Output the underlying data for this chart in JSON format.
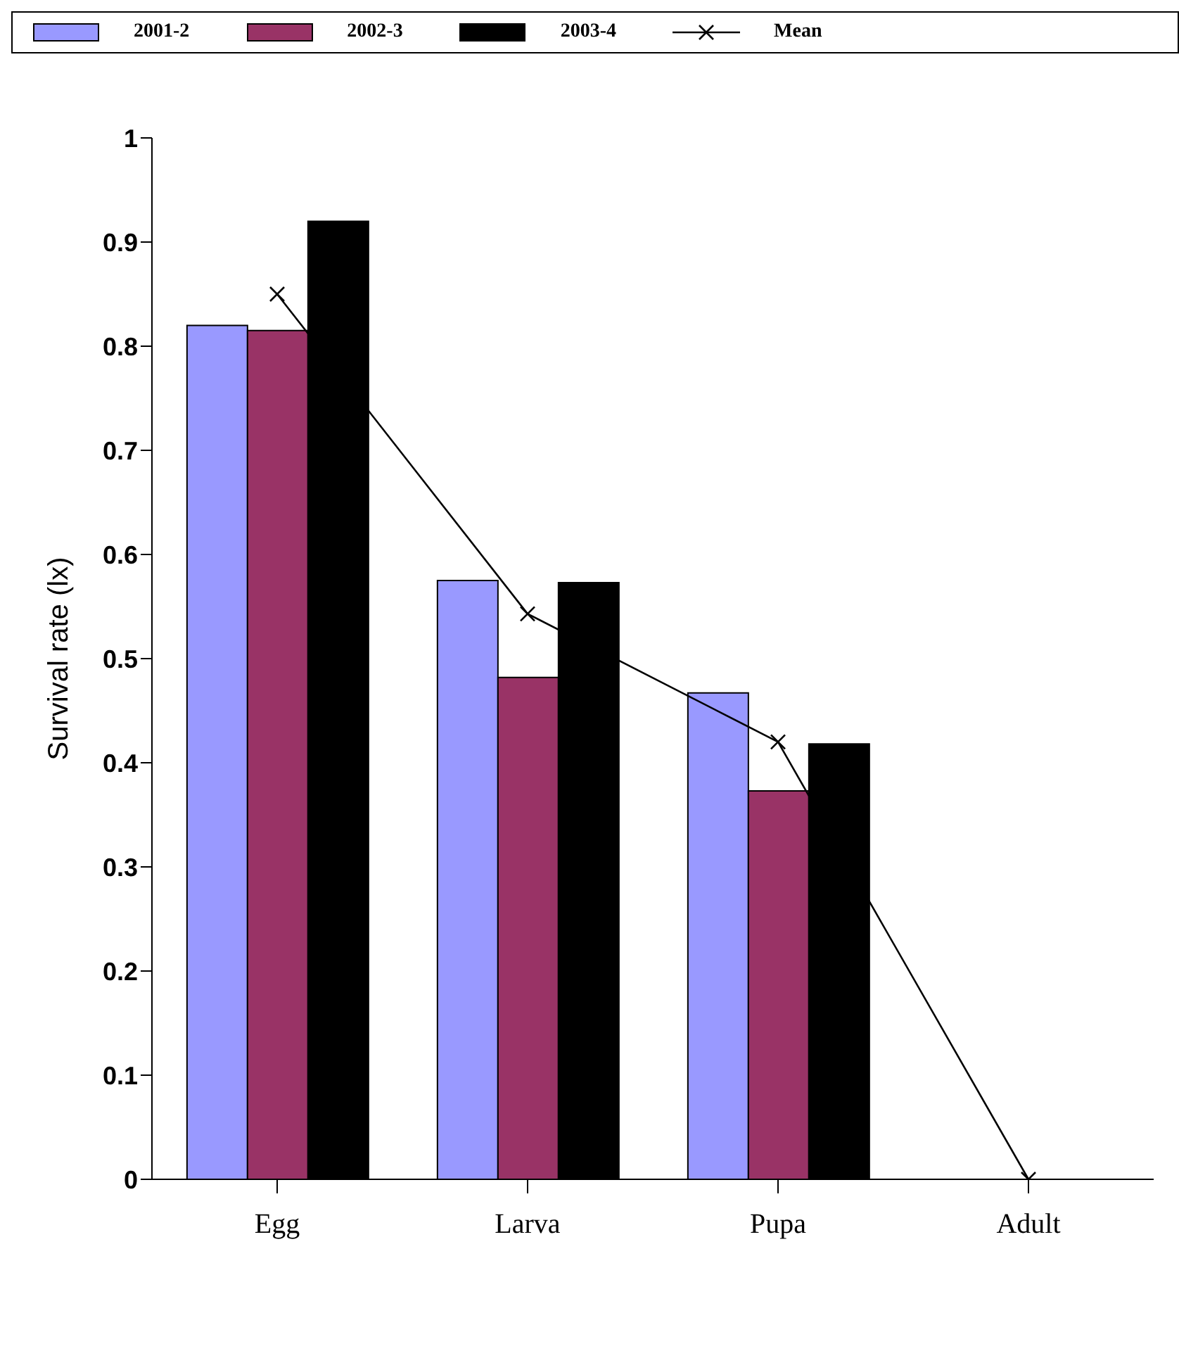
{
  "chart_data": {
    "type": "bar",
    "ylabel": "Survival rate (lx)",
    "categories": [
      "Egg",
      "Larva",
      "Pupa",
      "Adult"
    ],
    "series": [
      {
        "name": "2001-2",
        "color": "#9999ff",
        "values": [
          0.82,
          0.575,
          0.467,
          null
        ]
      },
      {
        "name": "2002-3",
        "color": "#993366",
        "values": [
          0.815,
          0.482,
          0.373,
          null
        ]
      },
      {
        "name": "2003-4",
        "color": "#000000",
        "values": [
          0.92,
          0.573,
          0.418,
          null
        ]
      },
      {
        "name": "Mean",
        "type": "line",
        "color": "#000000",
        "marker": "cross",
        "values": [
          0.85,
          0.543,
          0.42,
          0
        ]
      }
    ],
    "ylim": [
      0,
      1
    ],
    "yticks": [
      0,
      0.1,
      0.2,
      0.3,
      0.4,
      0.5,
      0.6,
      0.7,
      0.8,
      0.9,
      1
    ],
    "grid": false,
    "legend": "top"
  }
}
